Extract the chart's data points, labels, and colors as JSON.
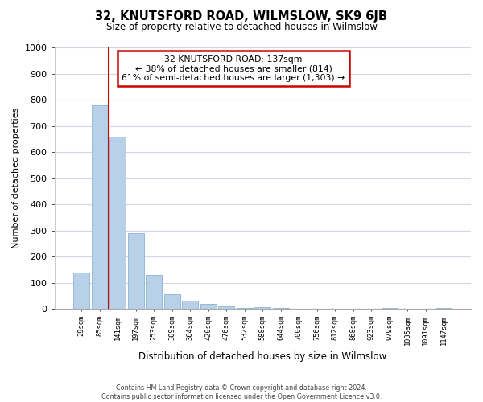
{
  "title": "32, KNUTSFORD ROAD, WILMSLOW, SK9 6JB",
  "subtitle": "Size of property relative to detached houses in Wilmslow",
  "xlabel": "Distribution of detached houses by size in Wilmslow",
  "ylabel": "Number of detached properties",
  "bar_labels": [
    "29sqm",
    "85sqm",
    "141sqm",
    "197sqm",
    "253sqm",
    "309sqm",
    "364sqm",
    "420sqm",
    "476sqm",
    "532sqm",
    "588sqm",
    "644sqm",
    "700sqm",
    "756sqm",
    "812sqm",
    "868sqm",
    "923sqm",
    "979sqm",
    "1035sqm",
    "1091sqm",
    "1147sqm"
  ],
  "bar_heights": [
    140,
    780,
    660,
    290,
    130,
    55,
    32,
    18,
    10,
    5,
    8,
    4,
    2,
    0,
    0,
    0,
    0,
    5,
    0,
    0,
    3
  ],
  "bar_color": "#b8d0e8",
  "bar_edge_color": "#7aaace",
  "vline_x": 1.5,
  "vline_color": "#cc0000",
  "ylim": [
    0,
    1000
  ],
  "yticks": [
    0,
    100,
    200,
    300,
    400,
    500,
    600,
    700,
    800,
    900,
    1000
  ],
  "annotation_lines": [
    "32 KNUTSFORD ROAD: 137sqm",
    "← 38% of detached houses are smaller (814)",
    "61% of semi-detached houses are larger (1,303) →"
  ],
  "footer_line1": "Contains HM Land Registry data © Crown copyright and database right 2024.",
  "footer_line2": "Contains public sector information licensed under the Open Government Licence v3.0.",
  "bg_color": "#ffffff",
  "grid_color": "#d0d8e8",
  "ann_box_edge_color": "#cc0000"
}
